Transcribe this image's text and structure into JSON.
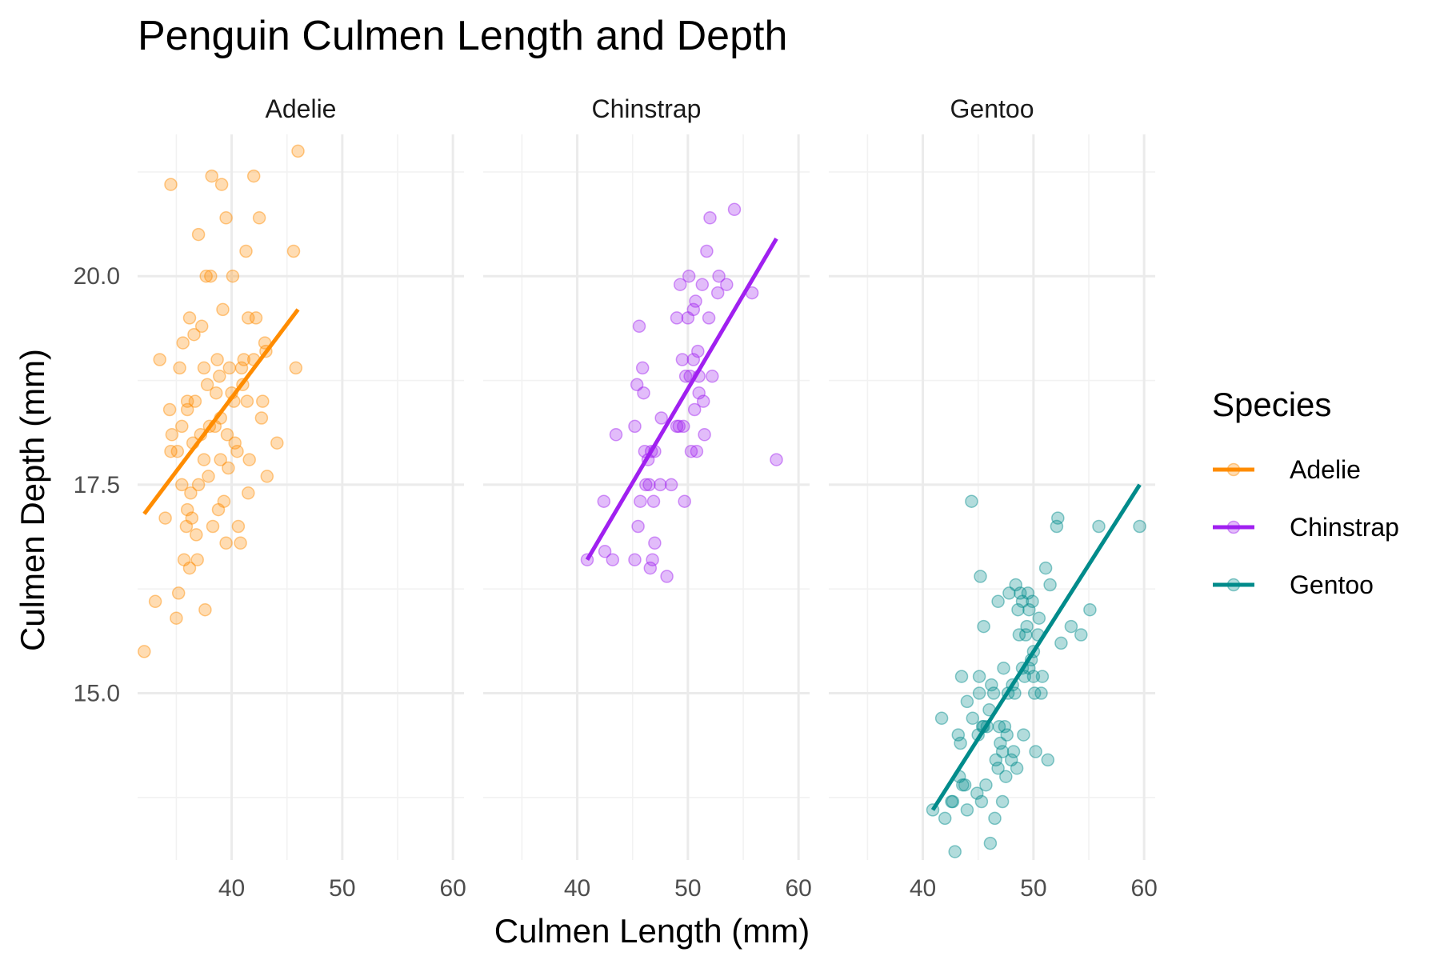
{
  "chart_data": {
    "type": "scatter",
    "title": "Penguin Culmen Length and Depth",
    "xlabel": "Culmen Length (mm)",
    "ylabel": "Culmen Depth (mm)",
    "xlim": [
      31.5,
      61
    ],
    "ylim": [
      13,
      21.7
    ],
    "x_ticks": [
      40,
      50,
      60
    ],
    "x_tick_labels": [
      "40",
      "50",
      "60"
    ],
    "y_ticks": [
      15.0,
      17.5,
      20.0
    ],
    "y_tick_labels": [
      "15.0",
      "17.5",
      "20.0"
    ],
    "grid": true,
    "legend": {
      "title": "Species",
      "placement": "right",
      "entries": [
        "Adelie",
        "Chinstrap",
        "Gentoo"
      ]
    },
    "facets": [
      "Adelie",
      "Chinstrap",
      "Gentoo"
    ],
    "series": [
      {
        "name": "Adelie",
        "color": "#FF8C00",
        "fit_line": {
          "x": [
            32.1,
            46.0
          ],
          "y": [
            17.15,
            19.6
          ]
        },
        "x": [
          32.1,
          33.1,
          33.5,
          34.0,
          34.4,
          34.5,
          34.6,
          35.0,
          35.1,
          35.2,
          35.3,
          35.5,
          35.6,
          35.7,
          35.9,
          36.0,
          36.0,
          36.2,
          36.2,
          36.3,
          36.4,
          36.5,
          36.6,
          36.7,
          36.8,
          36.9,
          37.0,
          37.2,
          37.3,
          37.5,
          37.6,
          37.7,
          37.8,
          37.9,
          38.1,
          38.2,
          38.3,
          38.5,
          38.6,
          38.7,
          38.8,
          38.9,
          39.0,
          39.1,
          39.2,
          39.3,
          39.5,
          39.6,
          39.7,
          39.8,
          40.1,
          40.2,
          40.3,
          40.5,
          40.6,
          40.8,
          40.9,
          41.1,
          41.3,
          41.4,
          41.5,
          41.6,
          42.0,
          42.2,
          42.5,
          42.7,
          42.8,
          43.1,
          43.2,
          44.1,
          45.6,
          45.8,
          46.0,
          36.0,
          37.0,
          38.0,
          39.0,
          40.0,
          41.0,
          42.0,
          35.5,
          37.5,
          39.5,
          41.5,
          34.5,
          43.0
        ],
        "y": [
          15.5,
          16.1,
          19.0,
          17.1,
          18.4,
          21.1,
          18.1,
          15.9,
          17.9,
          16.2,
          18.9,
          17.5,
          19.2,
          16.6,
          17.0,
          18.5,
          17.2,
          16.5,
          19.5,
          17.4,
          17.1,
          18.0,
          19.3,
          18.5,
          16.9,
          16.6,
          20.5,
          18.1,
          19.4,
          18.9,
          16.0,
          20.0,
          18.7,
          17.6,
          20.0,
          21.2,
          17.0,
          18.2,
          18.6,
          19.0,
          17.2,
          18.8,
          17.8,
          21.1,
          19.6,
          17.3,
          20.7,
          18.1,
          17.7,
          18.9,
          20.0,
          18.5,
          18.0,
          17.9,
          17.0,
          16.8,
          18.9,
          19.0,
          20.3,
          18.5,
          19.5,
          17.8,
          21.2,
          19.5,
          20.7,
          18.3,
          18.5,
          19.1,
          17.6,
          18.0,
          20.3,
          18.9,
          21.5,
          18.4,
          17.5,
          18.2,
          18.3,
          18.6,
          18.7,
          19.0,
          18.2,
          17.8,
          16.8,
          17.4,
          17.9,
          19.2
        ]
      },
      {
        "name": "Chinstrap",
        "color": "#A020F0",
        "fit_line": {
          "x": [
            40.9,
            58.0
          ],
          "y": [
            16.6,
            20.45
          ]
        },
        "x": [
          40.9,
          42.4,
          42.5,
          43.2,
          43.5,
          45.2,
          45.4,
          45.5,
          45.6,
          45.7,
          45.9,
          46.0,
          46.1,
          46.4,
          46.5,
          46.6,
          46.7,
          46.8,
          46.9,
          47.0,
          47.5,
          47.6,
          48.1,
          48.5,
          49.0,
          49.2,
          49.3,
          49.5,
          49.6,
          49.7,
          49.8,
          50.0,
          50.1,
          50.2,
          50.3,
          50.5,
          50.6,
          50.7,
          50.8,
          50.9,
          51.0,
          51.3,
          51.4,
          51.5,
          51.7,
          51.9,
          52.0,
          52.2,
          52.7,
          52.8,
          53.5,
          54.2,
          55.8,
          58.0,
          45.2,
          46.2,
          47.0,
          49.0,
          50.5,
          51.0
        ],
        "y": [
          16.6,
          17.3,
          16.7,
          16.6,
          18.1,
          16.6,
          18.7,
          17.0,
          19.4,
          17.3,
          18.9,
          18.6,
          17.9,
          17.8,
          17.5,
          16.5,
          17.9,
          16.6,
          17.3,
          16.8,
          17.5,
          18.3,
          16.4,
          17.5,
          19.5,
          18.2,
          19.9,
          19.0,
          18.2,
          17.3,
          18.8,
          19.5,
          20.0,
          18.8,
          17.9,
          19.6,
          18.4,
          19.7,
          17.9,
          19.1,
          18.8,
          19.9,
          18.5,
          18.1,
          20.3,
          19.5,
          20.7,
          18.8,
          19.8,
          20.0,
          19.9,
          20.8,
          19.8,
          17.8,
          18.2,
          17.5,
          17.9,
          18.2,
          19.0,
          18.6
        ]
      },
      {
        "name": "Gentoo",
        "color": "#008B8B",
        "fit_line": {
          "x": [
            40.9,
            59.6
          ],
          "y": [
            13.6,
            17.5
          ]
        },
        "x": [
          40.9,
          41.7,
          42.0,
          42.6,
          42.7,
          42.9,
          43.2,
          43.3,
          43.4,
          43.5,
          43.6,
          43.8,
          44.0,
          44.4,
          44.5,
          44.9,
          45.0,
          45.1,
          45.2,
          45.3,
          45.4,
          45.5,
          45.7,
          45.8,
          46.1,
          46.2,
          46.4,
          46.5,
          46.6,
          46.8,
          46.9,
          47.2,
          47.3,
          47.4,
          47.5,
          47.6,
          47.7,
          47.8,
          48.1,
          48.2,
          48.4,
          48.5,
          48.6,
          48.7,
          48.8,
          49.0,
          49.1,
          49.2,
          49.3,
          49.4,
          49.5,
          49.6,
          49.8,
          49.9,
          50.0,
          50.1,
          50.2,
          50.4,
          50.5,
          50.7,
          50.8,
          51.1,
          51.3,
          51.5,
          52.1,
          52.2,
          52.5,
          53.4,
          54.3,
          55.1,
          55.9,
          59.6,
          44.0,
          46.0,
          47.0,
          48.0,
          49.0,
          50.0,
          45.5,
          46.8,
          48.3,
          49.6,
          47.2,
          45.1
        ],
        "y": [
          13.6,
          14.7,
          13.5,
          13.7,
          13.7,
          13.1,
          14.5,
          14.0,
          14.4,
          15.2,
          13.9,
          13.9,
          13.6,
          17.3,
          14.7,
          13.8,
          14.5,
          15.0,
          16.4,
          13.7,
          14.6,
          15.8,
          13.9,
          14.6,
          13.2,
          15.1,
          15.0,
          13.5,
          14.2,
          16.1,
          14.6,
          13.7,
          15.3,
          14.6,
          14.0,
          14.5,
          15.0,
          16.2,
          15.1,
          14.3,
          16.3,
          14.1,
          16.0,
          15.7,
          16.2,
          16.1,
          14.5,
          15.2,
          15.7,
          15.8,
          16.2,
          16.0,
          15.4,
          16.1,
          15.2,
          15.0,
          14.3,
          15.7,
          15.9,
          15.0,
          15.2,
          16.5,
          14.2,
          16.3,
          17.0,
          17.1,
          15.6,
          15.8,
          15.7,
          16.0,
          17.0,
          17.0,
          14.9,
          14.8,
          14.4,
          14.2,
          15.3,
          15.5,
          14.6,
          14.1,
          15.0,
          15.3,
          14.3,
          15.2
        ]
      }
    ]
  }
}
